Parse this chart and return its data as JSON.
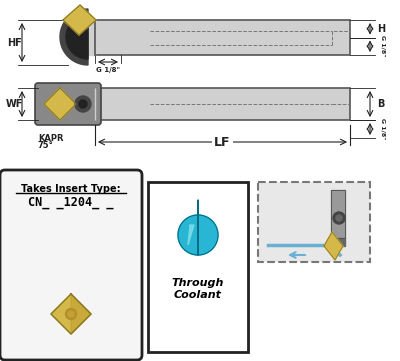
{
  "bg_color": "#ffffff",
  "label_HF": "HF",
  "label_WF": "WF",
  "label_H": "H",
  "label_B": "B",
  "label_G": "G 1/8\"",
  "label_LF": "LF",
  "label_KAPR": "KAPR",
  "label_KAPR2": "75°",
  "label_insert": "Takes Insert Type:",
  "label_insert_code": "CN_ _1204_ _",
  "label_coolant1": "Through",
  "label_coolant2": "Coolant",
  "holder_color": "#d0d0d0",
  "insert_color": "#d4b84a",
  "clamp_color": "#555555",
  "water_blue": "#29b6d4",
  "water_light": "#80deea",
  "water_dark": "#006d87",
  "dim_color": "#222222"
}
